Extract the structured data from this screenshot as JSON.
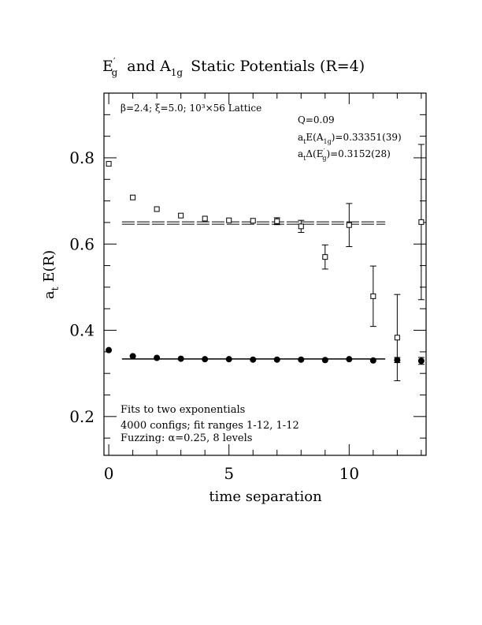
{
  "chart_data": {
    "type": "scatter",
    "title": {
      "main": "E",
      "main_sup": "′",
      "main_sub": "g",
      "join": "and A",
      "join_sub": "1g",
      "rest": "Static Potentials (R=4)"
    },
    "xlabel": "time separation",
    "ylabel": {
      "a": "a",
      "a_sub": "t",
      "rest": "E(R)"
    },
    "xlim": [
      -0.2,
      13.2
    ],
    "ylim": [
      0.11,
      0.95
    ],
    "xticks_major": [
      0,
      5,
      10
    ],
    "xticks_minor": [
      1,
      2,
      3,
      4,
      6,
      7,
      8,
      9,
      11,
      12,
      13
    ],
    "yticks_major": [
      0.2,
      0.4,
      0.6,
      0.8
    ],
    "yticks_minor": [
      0.15,
      0.25,
      0.3,
      0.35,
      0.45,
      0.5,
      0.55,
      0.65,
      0.7,
      0.75,
      0.85,
      0.9
    ],
    "xtick_labels": [
      "0",
      "5",
      "10"
    ],
    "ytick_labels": [
      "0.2",
      "0.4",
      "0.6",
      "0.8"
    ],
    "annotations": {
      "lattice": "β=2.4; ξ=5.0; 10³×56 Lattice",
      "q": "Q=0.09",
      "a1g_pre": "a",
      "a1g_pre_sub": "t",
      "a1g_mid": "E(A",
      "a1g_sub": "1g",
      "a1g_val": ")=0.33351(39)",
      "eg_pre": "a",
      "eg_pre_sub": "t",
      "eg_mid": "Δ(E",
      "eg_sup": "′",
      "eg_sub": "g",
      "eg_val": ")=0.3152(28)",
      "fits": "Fits to two exponentials",
      "configs": "4000 configs; fit ranges 1-12, 1-12",
      "fuzzing": "Fuzzing: α=0.25, 8 levels"
    },
    "series": [
      {
        "marker": "filled-circle",
        "x": [
          0,
          1,
          2,
          3,
          4,
          5,
          6,
          7,
          8,
          9,
          10,
          11,
          12,
          13
        ],
        "y": [
          0.354,
          0.34,
          0.336,
          0.334,
          0.333,
          0.333,
          0.332,
          0.332,
          0.332,
          0.331,
          0.333,
          0.33,
          0.331,
          0.329
        ],
        "yerr": [
          0.001,
          0.001,
          0.001,
          0.001,
          0.001,
          0.001,
          0.001,
          0.001,
          0.002,
          0.002,
          0.003,
          0.004,
          0.006,
          0.008
        ]
      },
      {
        "marker": "open-square",
        "x": [
          0,
          1,
          2,
          3,
          4,
          5,
          6,
          7,
          8,
          9,
          10,
          11,
          12,
          13
        ],
        "y": [
          0.786,
          0.708,
          0.681,
          0.666,
          0.659,
          0.655,
          0.654,
          0.653,
          0.641,
          0.57,
          0.644,
          0.479,
          0.383,
          0.651
        ],
        "yerr": [
          0.002,
          0.002,
          0.002,
          0.003,
          0.003,
          0.004,
          0.005,
          0.008,
          0.014,
          0.028,
          0.05,
          0.07,
          0.1,
          0.18
        ]
      }
    ],
    "fit_bands": [
      {
        "x": [
          1,
          12
        ],
        "center": 0.3335,
        "halfwidth": 0.0004,
        "style": "solid"
      },
      {
        "x": [
          1,
          12
        ],
        "center": 0.6487,
        "halfwidth": 0.0028,
        "style": "dashed"
      }
    ]
  }
}
